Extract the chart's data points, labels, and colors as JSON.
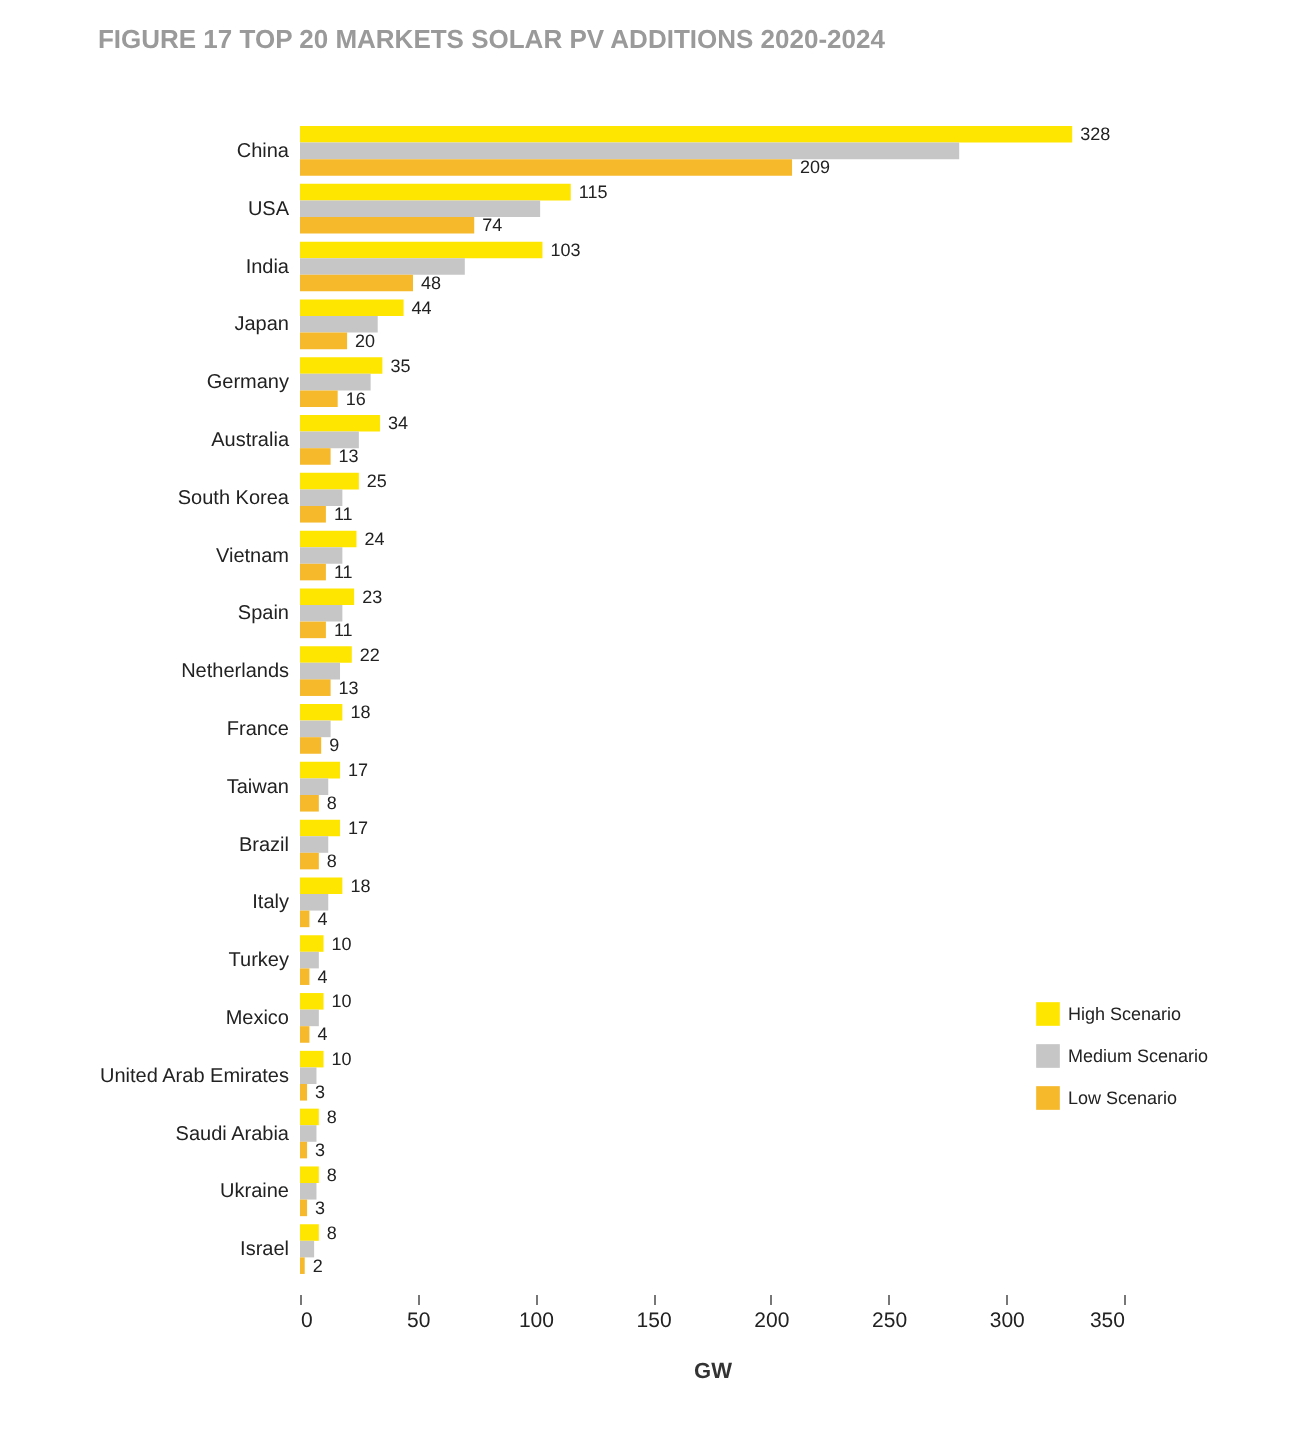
{
  "chart_data": {
    "type": "bar",
    "orientation": "horizontal",
    "title": "FIGURE 17 TOP 20 MARKETS SOLAR PV ADDITIONS 2020-2024",
    "xlabel": "GW",
    "categories": [
      "China",
      "USA",
      "India",
      "Japan",
      "Germany",
      "Australia",
      "South Korea",
      "Vietnam",
      "Spain",
      "Netherlands",
      "France",
      "Taiwan",
      "Brazil",
      "Italy",
      "Turkey",
      "Mexico",
      "United Arab Emirates",
      "Saudi Arabia",
      "Ukraine",
      "Israel"
    ],
    "series": [
      {
        "name": "High Scenario",
        "color": "#ffe600",
        "values": [
          328,
          115,
          103,
          44,
          35,
          34,
          25,
          24,
          23,
          22,
          18,
          17,
          17,
          18,
          10,
          10,
          10,
          8,
          8,
          8
        ],
        "value_labels": [
          "328",
          "115",
          "103",
          "44",
          "35",
          "34",
          "25",
          "24",
          "23",
          "22",
          "18",
          "17",
          "17",
          "18",
          "10",
          "10",
          "10",
          "8",
          "8",
          "8"
        ]
      },
      {
        "name": "Medium Scenario",
        "color": "#c6c6c6",
        "values": [
          280,
          102,
          70,
          33,
          30,
          25,
          18,
          18,
          18,
          17,
          13,
          12,
          12,
          12,
          8,
          8,
          7,
          7,
          7,
          6
        ]
      },
      {
        "name": "Low Scenario",
        "color": "#f6b92b",
        "values": [
          209,
          74,
          48,
          20,
          16,
          13,
          11,
          11,
          11,
          13,
          9,
          8,
          8,
          4,
          4,
          4,
          3,
          3,
          3,
          2
        ],
        "value_labels": [
          "209",
          "74",
          "48",
          "20",
          "16",
          "13",
          "11",
          "11",
          "11",
          "13",
          "9",
          "8",
          "8",
          "4",
          "4",
          "4",
          "3",
          "3",
          "3",
          "2"
        ]
      }
    ],
    "xlim": [
      0,
      350
    ],
    "xticks": [
      0,
      50,
      100,
      150,
      200,
      250,
      300,
      350
    ],
    "legend": "bottom right"
  }
}
